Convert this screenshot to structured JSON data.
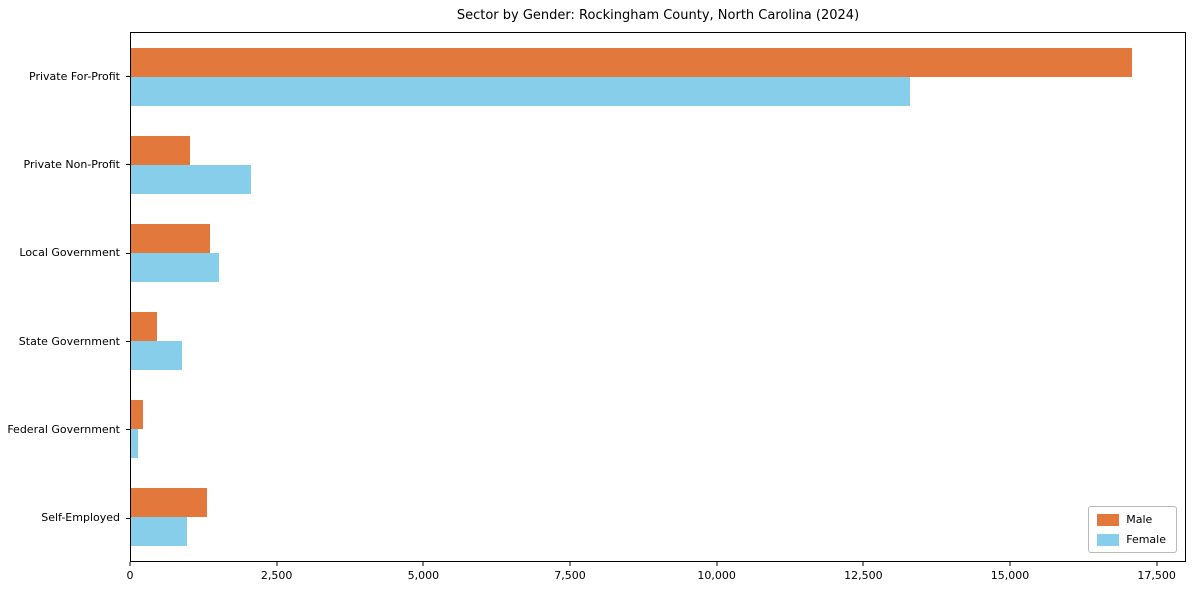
{
  "title": "Sector by Gender: Rockingham County, North Carolina (2024)",
  "chart_data": {
    "type": "bar",
    "orientation": "horizontal",
    "title": "Sector by Gender: Rockingham County, North Carolina (2024)",
    "categories": [
      "Private For-Profit",
      "Private Non-Profit",
      "Local Government",
      "State Government",
      "Federal Government",
      "Self-Employed"
    ],
    "series": [
      {
        "name": "Male",
        "color": "#e2783c",
        "values": [
          17100,
          1000,
          1350,
          450,
          200,
          1300
        ]
      },
      {
        "name": "Female",
        "color": "#87ceeb",
        "values": [
          13300,
          2050,
          1500,
          870,
          120,
          950
        ]
      }
    ],
    "xlabel": "",
    "ylabel": "",
    "xlim": [
      0,
      18000
    ],
    "x_ticks": [
      0,
      2500,
      5000,
      7500,
      10000,
      12500,
      15000,
      17500
    ],
    "x_tick_labels": [
      "0",
      "2,500",
      "5,000",
      "7,500",
      "10,000",
      "12,500",
      "15,000",
      "17,500"
    ],
    "grid": false,
    "legend_position": "lower right"
  },
  "legend": {
    "items": [
      {
        "label": "Male"
      },
      {
        "label": "Female"
      }
    ]
  }
}
